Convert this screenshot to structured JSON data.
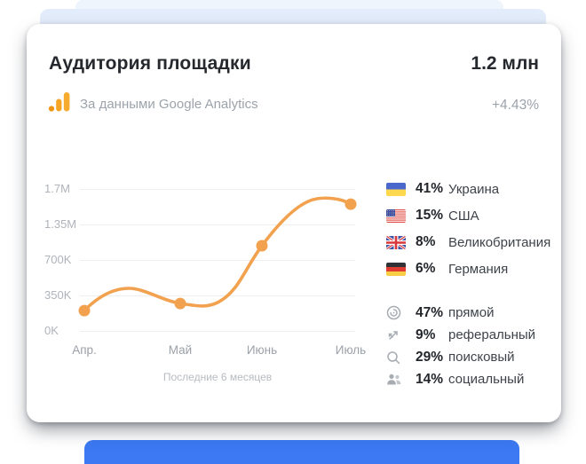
{
  "header": {
    "title": "Аудитория площадки",
    "value": "1.2 млн",
    "subtitle": "За данными Google Analytics",
    "delta": "+4.43%"
  },
  "chart_data": {
    "type": "line",
    "title": "Аудитория площадки",
    "x": [
      "Апр.",
      "Май",
      "Июнь",
      "Июль"
    ],
    "values": [
      200000,
      270000,
      960000,
      1550000
    ],
    "yticks": [
      {
        "label": "0K",
        "value": 0
      },
      {
        "label": "350K",
        "value": 350000
      },
      {
        "label": "700K",
        "value": 700000
      },
      {
        "label": "1.35M",
        "value": 1350000
      },
      {
        "label": "1.7M",
        "value": 1700000
      }
    ],
    "caption": "Последние 6 месяцев",
    "line_color": "#F2A14F",
    "grid": "horizontal",
    "legend": "none"
  },
  "countries": [
    {
      "flag": "ukraine",
      "percent": "41%",
      "name": "Украина"
    },
    {
      "flag": "usa",
      "percent": "15%",
      "name": "США"
    },
    {
      "flag": "uk",
      "percent": "8%",
      "name": "Великобритания"
    },
    {
      "flag": "germany",
      "percent": "6%",
      "name": "Германия"
    }
  ],
  "sources": [
    {
      "icon": "target-icon",
      "percent": "47%",
      "label": "прямой"
    },
    {
      "icon": "referral-arrows-icon",
      "percent": "9%",
      "label": "реферальный"
    },
    {
      "icon": "search-icon",
      "percent": "29%",
      "label": "поисковый"
    },
    {
      "icon": "people-icon",
      "percent": "14%",
      "label": "социальный"
    }
  ],
  "colors": {
    "accent_orange": "#F2A14F",
    "strip_light": "#EFF5FD",
    "strip_blue": "#E2ECFA",
    "bottom_bar_blue": "#3C79F2",
    "text_dark": "#25282D",
    "text_gray": "#9CA3AB",
    "icon_gray": "#A7ACB2"
  }
}
